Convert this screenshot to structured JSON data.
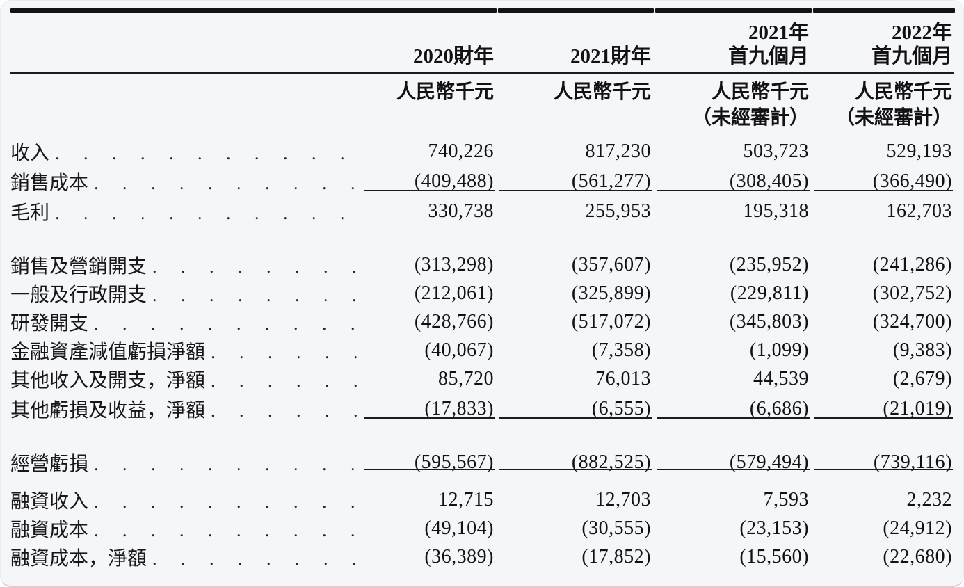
{
  "table": {
    "unit_label": "人民幣千元",
    "unaudited_label": "（未經審計）",
    "leader": ". . . . . . . . . . . . . . . . . . . . . . . . . . . . . . . . . . . . . . . .",
    "columns": [
      {
        "title_lines": [
          "2020財年"
        ],
        "unaudited": false
      },
      {
        "title_lines": [
          "2021財年"
        ],
        "unaudited": false
      },
      {
        "title_lines": [
          "2021年",
          "首九個月"
        ],
        "unaudited": true
      },
      {
        "title_lines": [
          "2022年",
          "首九個月"
        ],
        "unaudited": true
      }
    ],
    "rows": [
      {
        "label": "收入",
        "values": [
          "740,226",
          "817,230",
          "503,723",
          "529,193"
        ]
      },
      {
        "label": "銷售成本",
        "values": [
          "(409,488)",
          "(561,277)",
          "(308,405)",
          "(366,490)"
        ],
        "underline_below": true
      },
      {
        "label": "毛利",
        "values": [
          "330,738",
          "255,953",
          "195,318",
          "162,703"
        ]
      },
      {
        "spacer": true,
        "h": 36
      },
      {
        "label": "銷售及營銷開支",
        "values": [
          "(313,298)",
          "(357,607)",
          "(235,952)",
          "(241,286)"
        ]
      },
      {
        "label": "一般及行政開支",
        "values": [
          "(212,061)",
          "(325,899)",
          "(229,811)",
          "(302,752)"
        ]
      },
      {
        "label": "研發開支",
        "values": [
          "(428,766)",
          "(517,072)",
          "(345,803)",
          "(324,700)"
        ]
      },
      {
        "label": "金融資產減值虧損淨額",
        "values": [
          "(40,067)",
          "(7,358)",
          "(1,099)",
          "(9,383)"
        ]
      },
      {
        "label": "其他收入及開支，淨額",
        "values": [
          "85,720",
          "76,013",
          "44,539",
          "(2,679)"
        ]
      },
      {
        "label": "其他虧損及收益，淨額",
        "values": [
          "(17,833)",
          "(6,555)",
          "(6,686)",
          "(21,019)"
        ],
        "underline_below": true
      },
      {
        "spacer": true,
        "h": 28
      },
      {
        "label": "經營虧損",
        "values": [
          "(595,567)",
          "(882,525)",
          "(579,494)",
          "(739,116)"
        ],
        "underline_below": true,
        "tall": true
      },
      {
        "label": "融資收入",
        "values": [
          "12,715",
          "12,703",
          "7,593",
          "2,232"
        ]
      },
      {
        "label": "融資成本",
        "values": [
          "(49,104)",
          "(30,555)",
          "(23,153)",
          "(24,912)"
        ]
      },
      {
        "label": "融資成本，淨額",
        "values": [
          "(36,389)",
          "(17,852)",
          "(15,560)",
          "(22,680)"
        ]
      }
    ],
    "colors": {
      "background": "#f5f6f8",
      "text": "#17171a",
      "rule": "#141418"
    }
  }
}
